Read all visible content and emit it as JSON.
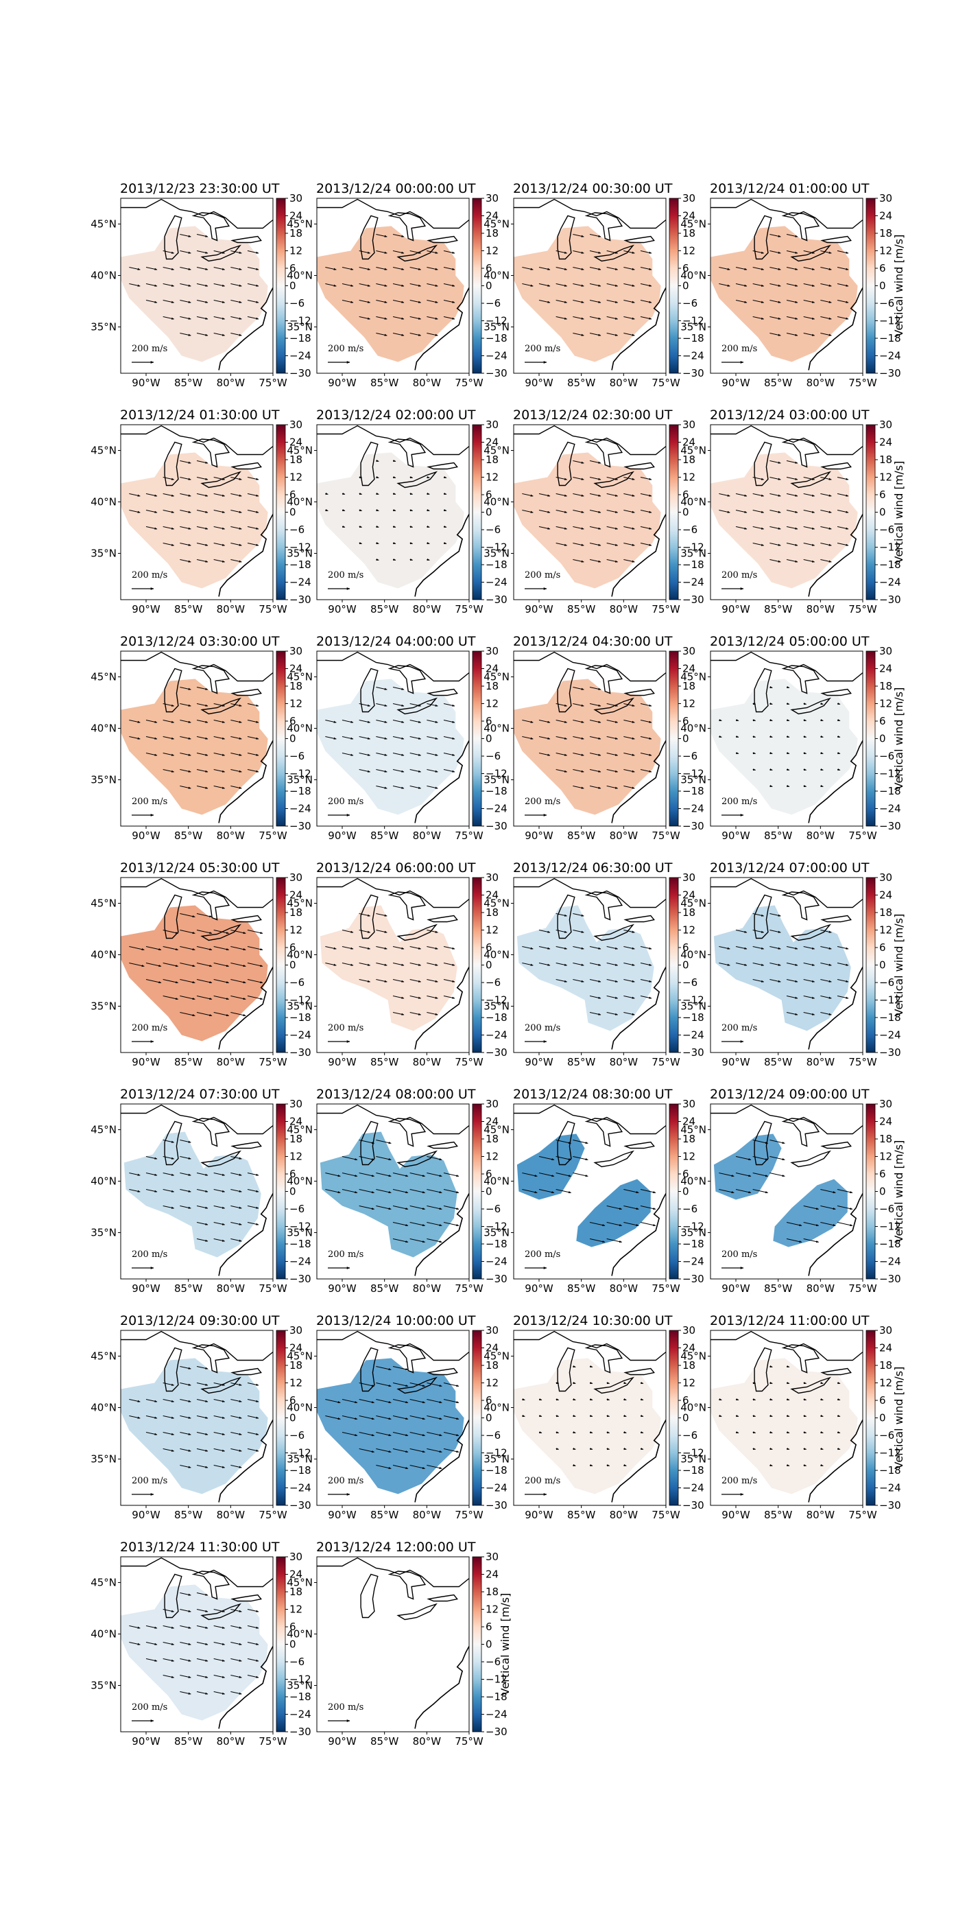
{
  "chart_data": {
    "type": "heatmap",
    "xlabel": "",
    "ylabel": "",
    "x_tick_labels": [
      "90°W",
      "85°W",
      "80°W",
      "75°W"
    ],
    "y_tick_labels": [
      "45°N",
      "40°N",
      "35°N"
    ],
    "xlim": [
      -93,
      -75
    ],
    "ylim": [
      30.5,
      47.5
    ],
    "colorbar": {
      "label": "Vertical wind [m/s]",
      "vmin": -30,
      "vmax": 30,
      "ticks": [
        "30",
        "24",
        "18",
        "12",
        "6",
        "0",
        "−6",
        "−12",
        "−18",
        "−24",
        "−30"
      ],
      "colormap": "RdBu_r"
    },
    "vector_key": {
      "label": "200 m/s"
    },
    "panels": [
      {
        "title": "2013/12/23 23:30:00 UT",
        "vertical_wind": 2,
        "color": "#f5e3da",
        "region": "full"
      },
      {
        "title": "2013/12/24 00:00:00 UT",
        "vertical_wind": 8,
        "color": "#f4c4a9",
        "region": "full"
      },
      {
        "title": "2013/12/24 00:30:00 UT",
        "vertical_wind": 7,
        "color": "#f6cdb5",
        "region": "full"
      },
      {
        "title": "2013/12/24 01:00:00 UT",
        "vertical_wind": 8,
        "color": "#f4c4a9",
        "region": "full"
      },
      {
        "title": "2013/12/24 01:30:00 UT",
        "vertical_wind": 4,
        "color": "#f8dccc",
        "region": "full"
      },
      {
        "title": "2013/12/24 02:00:00 UT",
        "vertical_wind": 0,
        "color": "#f1eeec",
        "region": "full"
      },
      {
        "title": "2013/12/24 02:30:00 UT",
        "vertical_wind": 6,
        "color": "#f7d2be",
        "region": "full"
      },
      {
        "title": "2013/12/24 03:00:00 UT",
        "vertical_wind": 3,
        "color": "#f8e1d4",
        "region": "full"
      },
      {
        "title": "2013/12/24 03:30:00 UT",
        "vertical_wind": 9,
        "color": "#f3bf9f",
        "region": "full"
      },
      {
        "title": "2013/12/24 04:00:00 UT",
        "vertical_wind": -2,
        "color": "#e2edf3",
        "region": "full"
      },
      {
        "title": "2013/12/24 04:30:00 UT",
        "vertical_wind": 8,
        "color": "#f4c4a9",
        "region": "full"
      },
      {
        "title": "2013/12/24 05:00:00 UT",
        "vertical_wind": -1,
        "color": "#eef1f2",
        "region": "full"
      },
      {
        "title": "2013/12/24 05:30:00 UT",
        "vertical_wind": 11,
        "color": "#eda584",
        "region": "full"
      },
      {
        "title": "2013/12/24 06:00:00 UT",
        "vertical_wind": 3,
        "color": "#f9e2d6",
        "region": "notch"
      },
      {
        "title": "2013/12/24 06:30:00 UT",
        "vertical_wind": -5,
        "color": "#cfe3ef",
        "region": "notch"
      },
      {
        "title": "2013/12/24 07:00:00 UT",
        "vertical_wind": -7,
        "color": "#bfdaea",
        "region": "notch"
      },
      {
        "title": "2013/12/24 07:30:00 UT",
        "vertical_wind": -6,
        "color": "#c7dfec",
        "region": "notch"
      },
      {
        "title": "2013/12/24 08:00:00 UT",
        "vertical_wind": -12,
        "color": "#7ab6d6",
        "region": "notch"
      },
      {
        "title": "2013/12/24 08:30:00 UT",
        "vertical_wind": -15,
        "color": "#4d97c8",
        "region": "split"
      },
      {
        "title": "2013/12/24 09:00:00 UT",
        "vertical_wind": -13,
        "color": "#60a3cf",
        "region": "split"
      },
      {
        "title": "2013/12/24 09:30:00 UT",
        "vertical_wind": -6,
        "color": "#c6deec",
        "region": "full"
      },
      {
        "title": "2013/12/24 10:00:00 UT",
        "vertical_wind": -13,
        "color": "#60a3cf",
        "region": "full"
      },
      {
        "title": "2013/12/24 10:30:00 UT",
        "vertical_wind": 1,
        "color": "#f6efea",
        "region": "full"
      },
      {
        "title": "2013/12/24 11:00:00 UT",
        "vertical_wind": 1,
        "color": "#f6efea",
        "region": "full"
      },
      {
        "title": "2013/12/24 11:30:00 UT",
        "vertical_wind": -2,
        "color": "#dfeaf2",
        "region": "full"
      },
      {
        "title": "2013/12/24 12:00:00 UT",
        "vertical_wind": null,
        "color": null,
        "region": "none"
      }
    ]
  }
}
